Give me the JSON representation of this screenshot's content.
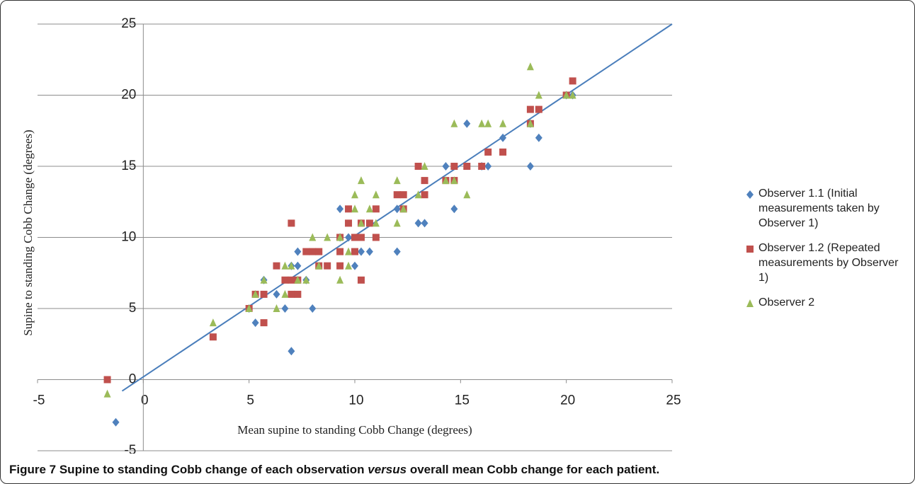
{
  "chart_data": {
    "type": "scatter",
    "xlabel": "Mean supine to standing Cobb Change (degrees)",
    "ylabel": "Supine to standing Cobb Change (degrees)",
    "xlim": [
      -5,
      25
    ],
    "ylim": [
      -5,
      25
    ],
    "xticks": [
      -5,
      0,
      5,
      10,
      15,
      20,
      25
    ],
    "yticks": [
      -5,
      0,
      5,
      10,
      15,
      20,
      25
    ],
    "grid": true,
    "legend": "right",
    "series": [
      {
        "name": "Observer 1.1 (Initial measurements taken by Observer 1)",
        "color": "#4f81bd",
        "marker": "diamond",
        "x": [
          -1.3,
          5,
          5.3,
          5.7,
          6.3,
          6.7,
          7,
          7,
          7.3,
          7.3,
          7.7,
          8,
          9.3,
          9.3,
          9.7,
          10,
          10.3,
          10.7,
          12,
          12,
          13,
          13.3,
          14.3,
          14.7,
          15.3,
          16,
          16.3,
          17,
          18.3,
          18.3,
          18.7,
          20,
          20.3
        ],
        "values": [
          -3,
          5,
          4,
          7,
          6,
          5,
          2,
          8,
          9,
          8,
          7,
          5,
          12,
          10,
          10,
          8,
          9,
          9,
          12,
          9,
          11,
          11,
          15,
          12,
          18,
          15,
          15,
          17,
          15,
          18,
          17,
          20,
          20
        ]
      },
      {
        "name": "Observer 1.2 (Repeated measurements by Observer 1)",
        "color": "#c0504d",
        "marker": "square",
        "x": [
          -1.7,
          3.3,
          5,
          5.3,
          5.7,
          5.7,
          6.3,
          6.7,
          7,
          7,
          7,
          7.3,
          7.3,
          7.7,
          8,
          8.3,
          8.3,
          8.7,
          9.3,
          9.3,
          9.3,
          9.7,
          9.7,
          10,
          10,
          10.3,
          10.3,
          10.3,
          10.7,
          11,
          11,
          12,
          12.3,
          12.3,
          13,
          13.3,
          13.3,
          14.3,
          14.7,
          14.7,
          15.3,
          16,
          16.3,
          17,
          18.3,
          18.3,
          18.7,
          20,
          20.3
        ],
        "values": [
          0,
          3,
          5,
          6,
          6,
          4,
          8,
          7,
          11,
          7,
          6,
          6,
          7,
          9,
          9,
          9,
          8,
          8,
          10,
          9,
          8,
          12,
          11,
          10,
          9,
          11,
          10,
          7,
          11,
          12,
          10,
          13,
          13,
          12,
          15,
          14,
          13,
          14,
          15,
          14,
          15,
          15,
          16,
          16,
          19,
          18,
          19,
          20,
          21
        ]
      },
      {
        "name": "Observer 2",
        "color": "#9bbb59",
        "marker": "triangle",
        "x": [
          -1.7,
          3.3,
          5,
          5.3,
          5.7,
          6.3,
          6.7,
          6.7,
          7,
          7.3,
          7.7,
          8,
          8.3,
          8.7,
          9.3,
          9.3,
          9.7,
          9.7,
          10,
          10,
          10.3,
          10.3,
          10.7,
          11,
          11,
          12,
          12,
          12.3,
          13,
          13.3,
          14.3,
          14.7,
          14.7,
          15.3,
          16,
          16.3,
          17,
          18.3,
          18.3,
          18.7,
          20,
          20.3
        ],
        "values": [
          -1,
          4,
          5,
          6,
          7,
          5,
          8,
          6,
          8,
          7,
          7,
          10,
          8,
          10,
          7,
          10,
          8,
          9,
          13,
          12,
          14,
          11,
          12,
          13,
          11,
          14,
          11,
          12,
          13,
          15,
          14,
          18,
          14,
          13,
          18,
          18,
          18,
          22,
          18,
          20,
          20,
          20
        ]
      }
    ],
    "fit_line": {
      "color": "#4a7ebb",
      "x": [
        -1,
        25
      ],
      "values": [
        -0.8,
        25
      ]
    }
  },
  "caption": {
    "label": "Figure 7",
    "text_before": " Supine to standing Cobb change of each observation ",
    "emphasis": "versus",
    "text_after": " overall mean Cobb change for each patient."
  }
}
